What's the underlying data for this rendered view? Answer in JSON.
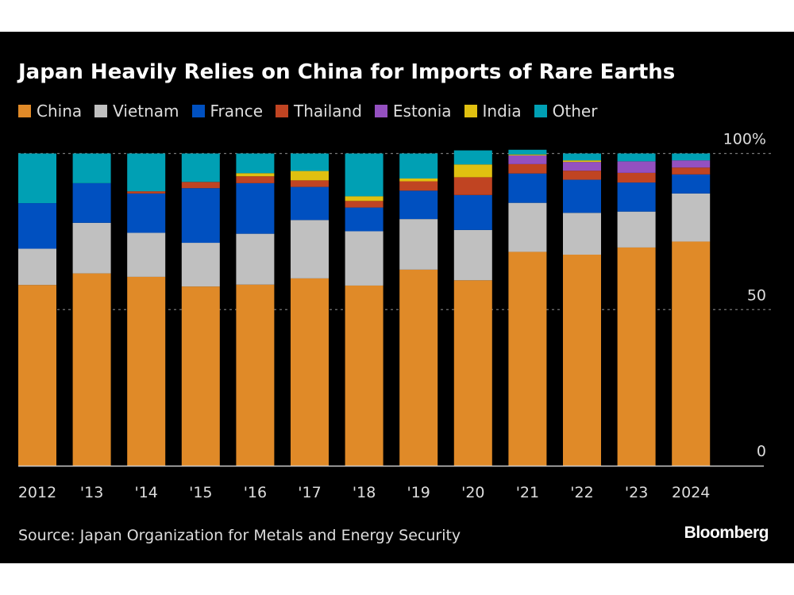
{
  "chart_data": {
    "type": "bar",
    "stacked": true,
    "title": "Japan Heavily Relies on China for Imports of Rare Earths",
    "source": "Source: Japan Organization for Metals and Energy Security",
    "brand": "Bloomberg",
    "categories": [
      "2012",
      "'13",
      "'14",
      "'15",
      "'16",
      "'17",
      "'18",
      "'19",
      "'20",
      "'21",
      "'22",
      "'23",
      "2024"
    ],
    "ylim": [
      0,
      100
    ],
    "yticks": [
      {
        "value": 0,
        "label": "0"
      },
      {
        "value": 50,
        "label": "50"
      },
      {
        "value": 100,
        "label": "100%"
      }
    ],
    "grid": true,
    "legend_position": "top-left",
    "series": [
      {
        "name": "China",
        "color": "#e08a28",
        "values": [
          57.9,
          61.6,
          60.5,
          57.4,
          58.0,
          60.0,
          57.7,
          62.8,
          59.4,
          68.5,
          67.6,
          69.9,
          71.8
        ]
      },
      {
        "name": "Vietnam",
        "color": "#c0c0c0",
        "values": [
          11.6,
          16.2,
          14.1,
          14.0,
          16.3,
          18.7,
          17.4,
          16.2,
          16.1,
          15.7,
          13.4,
          11.5,
          15.4
        ]
      },
      {
        "name": "France",
        "color": "#0050c0",
        "values": [
          14.6,
          12.7,
          12.6,
          17.5,
          16.2,
          10.6,
          7.6,
          9.1,
          11.2,
          9.4,
          10.6,
          9.3,
          6.1
        ]
      },
      {
        "name": "Thailand",
        "color": "#c04422",
        "values": [
          0,
          0,
          0.7,
          2.0,
          2.2,
          2.1,
          2.1,
          3.0,
          5.7,
          3.0,
          2.9,
          3.1,
          2.2
        ]
      },
      {
        "name": "Estonia",
        "color": "#9450c0",
        "values": [
          0,
          0,
          0,
          0,
          0,
          0,
          0,
          0,
          0,
          2.8,
          2.8,
          3.7,
          2.3
        ]
      },
      {
        "name": "India",
        "color": "#e0c010",
        "values": [
          0,
          0,
          0,
          0,
          1.0,
          3.0,
          1.5,
          0.9,
          4.1,
          0.3,
          0.5,
          0,
          0
        ]
      },
      {
        "name": "Other",
        "color": "#00a0b4",
        "values": [
          15.9,
          9.5,
          12.1,
          9.1,
          6.3,
          5.6,
          13.7,
          8.0,
          4.5,
          1.5,
          2.2,
          2.5,
          2.2
        ]
      }
    ]
  }
}
